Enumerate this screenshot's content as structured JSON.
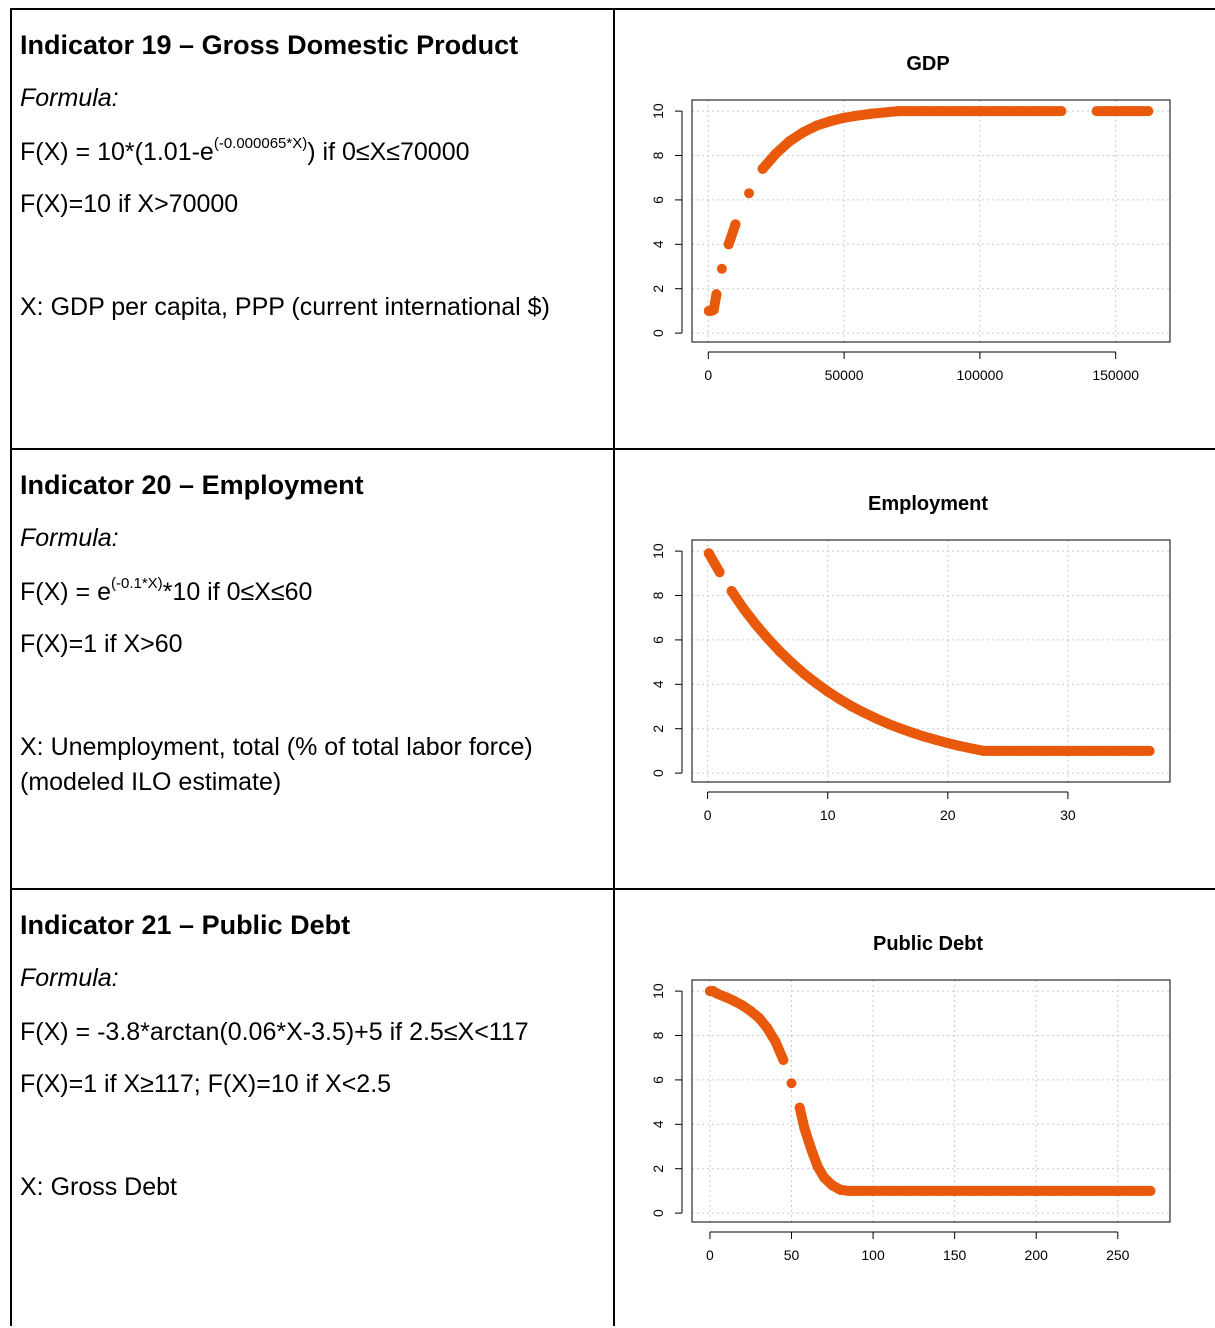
{
  "indicators": [
    {
      "title": "Indicator 19 – Gross Domestic Product",
      "formula_label": "Formula:",
      "formula_line1": {
        "pre": "F(X) = 10*(1.01-e",
        "sup": "(-0.000065*X)",
        "post": ") if 0≤X≤70000"
      },
      "formula_line2": "F(X)=10 if X>70000",
      "x_description": "X: GDP per capita, PPP (current international $)"
    },
    {
      "title": "Indicator 20 – Employment",
      "formula_label": "Formula:",
      "formula_line1": {
        "pre": "F(X) = e",
        "sup": "(-0.1*X)",
        "post": "*10 if 0≤X≤60"
      },
      "formula_line2": "F(X)=1 if X>60",
      "x_description": "X: Unemployment, total (% of total labor force) (modeled ILO estimate)"
    },
    {
      "title": "Indicator 21 – Public Debt",
      "formula_label": "Formula:",
      "formula_line1": {
        "pre": "F(X) = -3.8*arctan(0.06*X-3.5)+5 if 2.5≤X<117",
        "sup": "",
        "post": ""
      },
      "formula_line2": "F(X)=1 if X≥117; F(X)=10 if X<2.5",
      "x_description": "X: Gross Debt"
    }
  ],
  "colors": {
    "series": "#E8590C",
    "grid": "#cccccc",
    "axis": "#000000"
  },
  "chart_data": [
    {
      "type": "scatter",
      "title": "GDP",
      "xlabel": "",
      "ylabel": "",
      "xlim": [
        -6000,
        170000
      ],
      "ylim": [
        -0.4,
        10.5
      ],
      "x_ticks": [
        0,
        50000,
        100000,
        150000
      ],
      "y_ticks": [
        0,
        2,
        4,
        6,
        8,
        10
      ],
      "grid": true,
      "series": [
        {
          "points": [
            [
              200,
              1.0
            ],
            [
              1000,
              1.0
            ],
            [
              2000,
              1.05
            ],
            [
              3000,
              1.75
            ],
            [
              5000,
              2.9
            ],
            [
              7500,
              4.0
            ],
            [
              10000,
              4.9
            ],
            [
              15000,
              6.3
            ],
            [
              20000,
              7.4
            ],
            [
              25000,
              8.1
            ],
            [
              30000,
              8.65
            ],
            [
              35000,
              9.05
            ],
            [
              40000,
              9.35
            ],
            [
              45000,
              9.55
            ],
            [
              50000,
              9.7
            ],
            [
              55000,
              9.8
            ],
            [
              60000,
              9.88
            ],
            [
              65000,
              9.94
            ],
            [
              70000,
              10.0
            ],
            [
              75000,
              10.0
            ],
            [
              80000,
              10.0
            ],
            [
              85000,
              10.0
            ],
            [
              90000,
              10.0
            ],
            [
              95000,
              10.0
            ],
            [
              100000,
              10.0
            ],
            [
              105000,
              10.0
            ],
            [
              110000,
              10.0
            ],
            [
              115000,
              10.0
            ],
            [
              120000,
              10.0
            ],
            [
              125000,
              10.0
            ],
            [
              130000,
              10.0
            ],
            [
              143000,
              10.0
            ],
            [
              148000,
              10.0
            ],
            [
              152000,
              10.0
            ],
            [
              156000,
              10.0
            ],
            [
              158000,
              10.0
            ],
            [
              162000,
              10.0
            ]
          ]
        }
      ]
    },
    {
      "type": "scatter",
      "title": "Employment",
      "xlabel": "",
      "ylabel": "",
      "xlim": [
        -1.3,
        38.5
      ],
      "ylim": [
        -0.4,
        10.5
      ],
      "x_ticks": [
        0,
        10,
        20,
        30
      ],
      "y_ticks": [
        0,
        2,
        4,
        6,
        8,
        10
      ],
      "grid": true,
      "series": [
        {
          "points": [
            [
              0.1,
              9.9
            ],
            [
              1,
              9.05
            ],
            [
              2,
              8.2
            ],
            [
              3,
              7.4
            ],
            [
              4,
              6.7
            ],
            [
              5,
              6.07
            ],
            [
              6,
              5.49
            ],
            [
              7,
              4.97
            ],
            [
              8,
              4.49
            ],
            [
              9,
              4.07
            ],
            [
              10,
              3.68
            ],
            [
              11,
              3.33
            ],
            [
              12,
              3.01
            ],
            [
              13,
              2.73
            ],
            [
              14,
              2.47
            ],
            [
              15,
              2.23
            ],
            [
              16,
              2.02
            ],
            [
              17,
              1.83
            ],
            [
              18,
              1.65
            ],
            [
              19,
              1.5
            ],
            [
              20,
              1.35
            ],
            [
              21,
              1.22
            ],
            [
              22,
              1.11
            ],
            [
              23,
              1.0
            ],
            [
              24,
              1.0
            ],
            [
              25,
              1.0
            ],
            [
              26,
              1.0
            ],
            [
              27,
              1.0
            ],
            [
              28,
              1.0
            ],
            [
              29,
              1.0
            ],
            [
              30,
              1.0
            ],
            [
              31,
              1.0
            ],
            [
              32,
              1.0
            ],
            [
              33,
              1.0
            ],
            [
              34,
              1.0
            ],
            [
              35.3,
              1.0
            ],
            [
              36,
              1.0
            ],
            [
              36.8,
              1.0
            ]
          ]
        }
      ]
    },
    {
      "type": "scatter",
      "title": "Public Debt",
      "xlabel": "",
      "ylabel": "",
      "xlim": [
        -11,
        282
      ],
      "ylim": [
        -0.4,
        10.5
      ],
      "x_ticks": [
        0,
        50,
        100,
        150,
        200,
        250
      ],
      "y_ticks": [
        0,
        2,
        4,
        6,
        8,
        10
      ],
      "grid": true,
      "series": [
        {
          "points": [
            [
              0,
              10.0
            ],
            [
              2,
              10.0
            ],
            [
              4,
              9.9
            ],
            [
              10,
              9.72
            ],
            [
              15,
              9.55
            ],
            [
              20,
              9.35
            ],
            [
              25,
              9.1
            ],
            [
              30,
              8.8
            ],
            [
              35,
              8.35
            ],
            [
              40,
              7.75
            ],
            [
              45,
              6.9
            ],
            [
              50,
              5.85
            ],
            [
              55,
              4.75
            ],
            [
              58,
              3.8
            ],
            [
              62,
              2.9
            ],
            [
              66,
              2.1
            ],
            [
              70,
              1.6
            ],
            [
              75,
              1.25
            ],
            [
              80,
              1.05
            ],
            [
              85,
              1.0
            ],
            [
              90,
              1.0
            ],
            [
              100,
              1.0
            ],
            [
              110,
              1.0
            ],
            [
              120,
              1.0
            ],
            [
              130,
              1.0
            ],
            [
              140,
              1.0
            ],
            [
              150,
              1.0
            ],
            [
              160,
              1.0
            ],
            [
              170,
              1.0
            ],
            [
              180,
              1.0
            ],
            [
              190,
              1.0
            ],
            [
              200,
              1.0
            ],
            [
              210,
              1.0
            ],
            [
              220,
              1.0
            ],
            [
              228,
              1.0
            ],
            [
              235,
              1.0
            ],
            [
              242,
              1.0
            ],
            [
              250,
              1.0
            ],
            [
              257,
              1.0
            ],
            [
              263,
              1.0
            ],
            [
              270,
              1.0
            ]
          ]
        }
      ]
    }
  ]
}
